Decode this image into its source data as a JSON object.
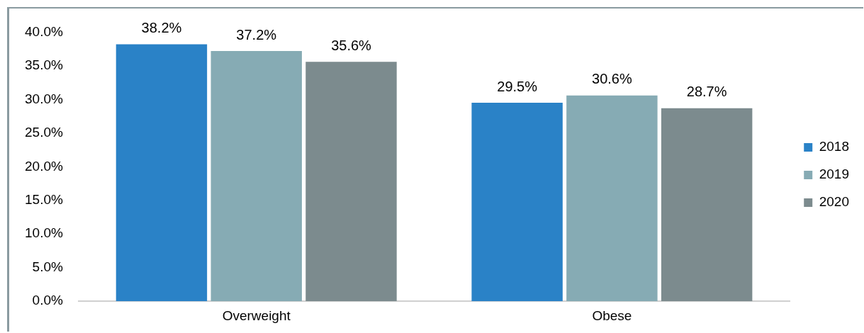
{
  "chart_data": {
    "type": "bar",
    "categories": [
      "Overweight",
      "Obese"
    ],
    "series": [
      {
        "name": "2018",
        "color": "#2a82c7",
        "values": [
          38.2,
          29.5
        ]
      },
      {
        "name": "2019",
        "color": "#86abb4",
        "values": [
          37.2,
          30.6
        ]
      },
      {
        "name": "2020",
        "color": "#7c8b8e",
        "values": [
          35.6,
          28.7
        ]
      }
    ],
    "ylim": [
      0,
      40
    ],
    "yticks": [
      {
        "value": 0,
        "label": "0.0%"
      },
      {
        "value": 5,
        "label": "5.0%"
      },
      {
        "value": 10,
        "label": "10.0%"
      },
      {
        "value": 15,
        "label": "15.0%"
      },
      {
        "value": 20,
        "label": "20.0%"
      },
      {
        "value": 25,
        "label": "25.0%"
      },
      {
        "value": 30,
        "label": "30.0%"
      },
      {
        "value": 35,
        "label": "35.0%"
      },
      {
        "value": 40,
        "label": "40.0%"
      }
    ],
    "value_labels": [
      [
        "38.2%",
        "29.5%"
      ],
      [
        "37.2%",
        "30.6%"
      ],
      [
        "35.6%",
        "28.7%"
      ]
    ],
    "grid": false,
    "legend": "right"
  }
}
